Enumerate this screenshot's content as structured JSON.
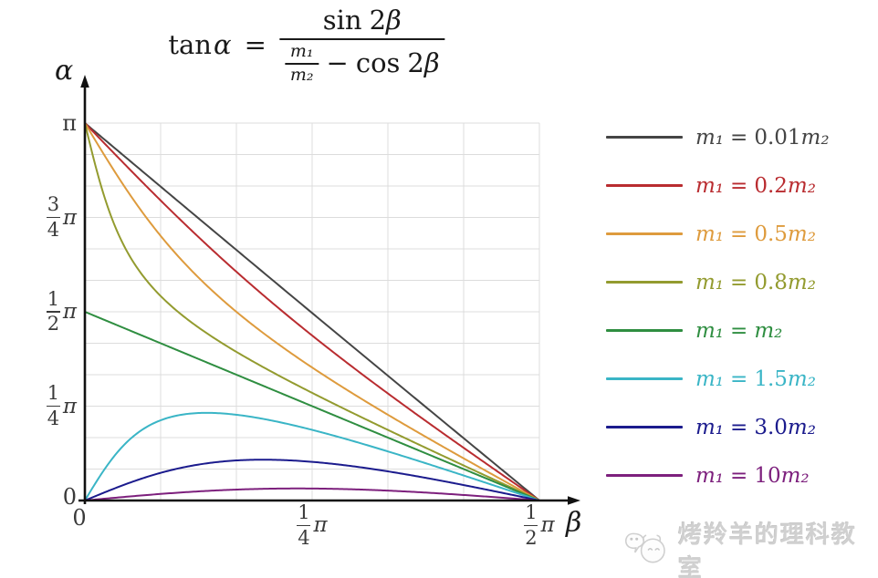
{
  "formula": {
    "lhs_fn": "tan",
    "lhs_var": "α",
    "equals": "=",
    "num_fn": "sin",
    "num_coef": "2",
    "num_var": "β",
    "den_frac_num": "m₁",
    "den_frac_den": "m₂",
    "minus": "−",
    "den_fn": "cos",
    "den_coef": "2",
    "den_var": "β"
  },
  "chart_data": {
    "type": "line",
    "title": "tan α = sin 2β / (m₁/m₂ − cos 2β)",
    "xlabel": "β",
    "ylabel": "α",
    "x_range": [
      0,
      "π/2"
    ],
    "y_range": [
      0,
      "π"
    ],
    "grid": {
      "show": true,
      "x_divisions": 6,
      "y_divisions": 12,
      "color": "#dcdcdc",
      "spacing": "π/12"
    },
    "axis_color": "#111111",
    "generating_function": "alpha = atan2(sin(2*beta), (m1/m2) - cos(2*beta)), beta in [0, pi/2]",
    "x_ticks": [
      {
        "v": 0,
        "text": "0"
      },
      {
        "v": 0.25,
        "num": "1",
        "den": "4",
        "pi": "π"
      },
      {
        "v": 0.5,
        "num": "1",
        "den": "2",
        "pi": "π"
      }
    ],
    "y_ticks": [
      {
        "v": 1,
        "text": "π"
      },
      {
        "v": 0.75,
        "num": "3",
        "den": "4",
        "pi": "π"
      },
      {
        "v": 0.5,
        "num": "1",
        "den": "2",
        "pi": "π"
      },
      {
        "v": 0.25,
        "num": "1",
        "den": "4",
        "pi": "π"
      },
      {
        "v": 0,
        "text": "0"
      }
    ],
    "series": [
      {
        "id": "m1-0.01m2",
        "label_lhs": "m₁",
        "label_eq": "=",
        "label_coef": "0.01",
        "label_rhs": "m₂",
        "ratio": 0.01,
        "color": "#454545",
        "alpha_at_beta_0_over_pi": 1,
        "alpha_at_beta_halfpi": 0,
        "alpha_max_over_pi": 1
      },
      {
        "id": "m1-0.2m2",
        "label_lhs": "m₁",
        "label_eq": "=",
        "label_coef": "0.2",
        "label_rhs": "m₂",
        "ratio": 0.2,
        "color": "#b92c30",
        "alpha_at_beta_0_over_pi": 1,
        "alpha_at_beta_halfpi": 0,
        "alpha_max_over_pi": 1
      },
      {
        "id": "m1-0.5m2",
        "label_lhs": "m₁",
        "label_eq": "=",
        "label_coef": "0.5",
        "label_rhs": "m₂",
        "ratio": 0.5,
        "color": "#de9b3d",
        "alpha_at_beta_0_over_pi": 1,
        "alpha_at_beta_halfpi": 0,
        "alpha_max_over_pi": 1
      },
      {
        "id": "m1-0.8m2",
        "label_lhs": "m₁",
        "label_eq": "=",
        "label_coef": "0.8",
        "label_rhs": "m₂",
        "ratio": 0.8,
        "color": "#939b2f",
        "alpha_at_beta_0_over_pi": 1,
        "alpha_at_beta_halfpi": 0,
        "alpha_max_over_pi": 1
      },
      {
        "id": "m1-m2",
        "label_lhs": "m₁",
        "label_eq": "=",
        "label_coef": "",
        "label_rhs": "m₂",
        "ratio": 1,
        "color": "#2f8e41",
        "alpha_at_beta_0_over_pi": 0.5,
        "alpha_at_beta_halfpi": 0,
        "alpha_max_over_pi": 0.5
      },
      {
        "id": "m1-1.5m2",
        "label_lhs": "m₁",
        "label_eq": "=",
        "label_coef": "1.5",
        "label_rhs": "m₂",
        "ratio": 1.5,
        "color": "#3ab5c6",
        "alpha_at_beta_0_over_pi": 0,
        "alpha_at_beta_halfpi": 0,
        "alpha_max_over_pi": 0.2323,
        "beta_at_max_over_pi": 0.1338
      },
      {
        "id": "m1-3.0m2",
        "label_lhs": "m₁",
        "label_eq": "=",
        "label_coef": "3.0",
        "label_rhs": "m₂",
        "ratio": 3,
        "color": "#1b1b8d",
        "alpha_at_beta_0_over_pi": 0,
        "alpha_at_beta_halfpi": 0,
        "alpha_max_over_pi": 0.1082,
        "beta_at_max_over_pi": 0.1959
      },
      {
        "id": "m1-10m2",
        "label_lhs": "m₁",
        "label_eq": "=",
        "label_coef": "10",
        "label_rhs": "m₂",
        "ratio": 10,
        "color": "#7d207d",
        "alpha_at_beta_0_over_pi": 0,
        "alpha_at_beta_halfpi": 0,
        "alpha_max_over_pi": 0.0319,
        "beta_at_max_over_pi": 0.2341
      }
    ],
    "legend_position": "right"
  },
  "watermark": {
    "icon": "mascot-icon",
    "text": "烤羚羊的理科教室"
  }
}
